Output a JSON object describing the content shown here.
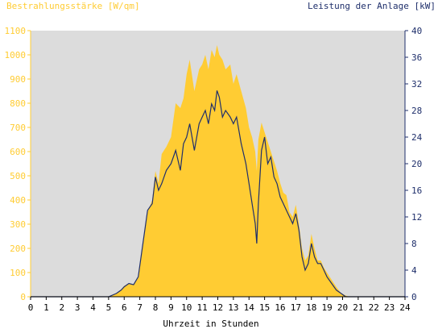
{
  "colors": {
    "irradiance": "#ffcc33",
    "power": "#1f2f6b",
    "plot_bg": "#dcdcdc",
    "left_axis": "#ffcc33",
    "right_axis": "#1f2f6b",
    "x_axis": "#000000"
  },
  "chart_data": {
    "type": "area",
    "title_left": "Bestrahlungsstärke [W/qm]",
    "title_right": "Leistung der Anlage [kW]",
    "xlabel": "Uhrzeit in Stunden",
    "xlim": [
      0,
      24
    ],
    "ylim_left": [
      0,
      1100
    ],
    "ylim_right": [
      0,
      40
    ],
    "x_ticks": [
      "0",
      "1",
      "2",
      "3",
      "4",
      "5",
      "6",
      "7",
      "8",
      "9",
      "10",
      "11",
      "12",
      "13",
      "14",
      "15",
      "16",
      "17",
      "18",
      "19",
      "20",
      "21",
      "22",
      "23",
      "24"
    ],
    "y_left_ticks": [
      "0",
      "100",
      "200",
      "300",
      "400",
      "500",
      "600",
      "700",
      "800",
      "900",
      "1000",
      "1100"
    ],
    "y_right_ticks": [
      "0",
      "4",
      "8",
      "12",
      "16",
      "20",
      "24",
      "28",
      "32",
      "36",
      "40"
    ],
    "grid": false,
    "series": [
      {
        "name": "Bestrahlungsstärke [W/qm]",
        "axis": "left",
        "style": "filled area",
        "x": [
          0,
          5.0,
          5.5,
          5.8,
          6.0,
          6.3,
          6.6,
          6.9,
          7.2,
          7.5,
          7.8,
          8.0,
          8.2,
          8.4,
          8.7,
          9.0,
          9.3,
          9.6,
          9.8,
          10.0,
          10.2,
          10.5,
          10.8,
          11.0,
          11.2,
          11.4,
          11.6,
          11.8,
          11.95,
          12.1,
          12.3,
          12.5,
          12.8,
          13.0,
          13.2,
          13.5,
          13.8,
          14.0,
          14.2,
          14.4,
          14.5,
          14.6,
          14.8,
          15.0,
          15.2,
          15.4,
          15.6,
          15.8,
          16.0,
          16.2,
          16.4,
          16.6,
          16.8,
          17.0,
          17.2,
          17.4,
          17.6,
          17.8,
          18.0,
          18.2,
          18.4,
          18.6,
          18.8,
          19.0,
          19.3,
          19.6,
          19.9,
          20.2,
          20.4,
          20.6,
          24
        ],
        "values": [
          0,
          0,
          15,
          30,
          45,
          55,
          50,
          80,
          230,
          350,
          400,
          520,
          470,
          590,
          620,
          660,
          800,
          780,
          820,
          920,
          980,
          850,
          940,
          960,
          1000,
          940,
          1020,
          990,
          1040,
          1000,
          980,
          940,
          960,
          880,
          920,
          850,
          780,
          700,
          660,
          600,
          520,
          650,
          720,
          680,
          640,
          600,
          560,
          520,
          470,
          430,
          420,
          350,
          330,
          380,
          300,
          200,
          150,
          170,
          260,
          200,
          150,
          150,
          120,
          100,
          70,
          40,
          15,
          5,
          0,
          0,
          0
        ]
      },
      {
        "name": "Leistung der Anlage [kW]",
        "axis": "right",
        "style": "line",
        "x": [
          0,
          5.0,
          5.5,
          5.8,
          6.0,
          6.3,
          6.6,
          6.9,
          7.2,
          7.5,
          7.8,
          8.0,
          8.2,
          8.4,
          8.7,
          9.0,
          9.3,
          9.6,
          9.8,
          10.0,
          10.2,
          10.5,
          10.8,
          11.0,
          11.2,
          11.4,
          11.6,
          11.8,
          11.95,
          12.1,
          12.3,
          12.5,
          12.8,
          13.0,
          13.2,
          13.5,
          13.8,
          14.0,
          14.2,
          14.4,
          14.5,
          14.6,
          14.8,
          15.0,
          15.2,
          15.4,
          15.6,
          15.8,
          16.0,
          16.2,
          16.4,
          16.6,
          16.8,
          17.0,
          17.2,
          17.4,
          17.6,
          17.8,
          18.0,
          18.2,
          18.4,
          18.6,
          18.8,
          19.0,
          19.3,
          19.6,
          19.9,
          20.2,
          20.4,
          20.6,
          24
        ],
        "values": [
          0,
          0,
          0.5,
          1.0,
          1.5,
          2.0,
          1.8,
          3.0,
          8.0,
          13.0,
          14.0,
          18.0,
          16.0,
          17.0,
          19.0,
          20.0,
          22.0,
          19.0,
          23.0,
          24.0,
          26.0,
          22.0,
          26.0,
          27.0,
          28.0,
          26.0,
          29.0,
          28.0,
          31.0,
          30.0,
          27.0,
          28.0,
          27.0,
          26.0,
          27.0,
          23.0,
          20.0,
          17.0,
          14.0,
          11.0,
          8.0,
          14.0,
          22.0,
          24.0,
          20.0,
          21.0,
          18.0,
          17.0,
          15.0,
          14.0,
          13.0,
          12.0,
          11.0,
          12.5,
          10.0,
          6.0,
          4.0,
          5.0,
          8.0,
          6.0,
          5.0,
          5.0,
          4.0,
          3.0,
          2.0,
          1.0,
          0.5,
          0,
          0,
          0,
          0
        ]
      }
    ]
  }
}
